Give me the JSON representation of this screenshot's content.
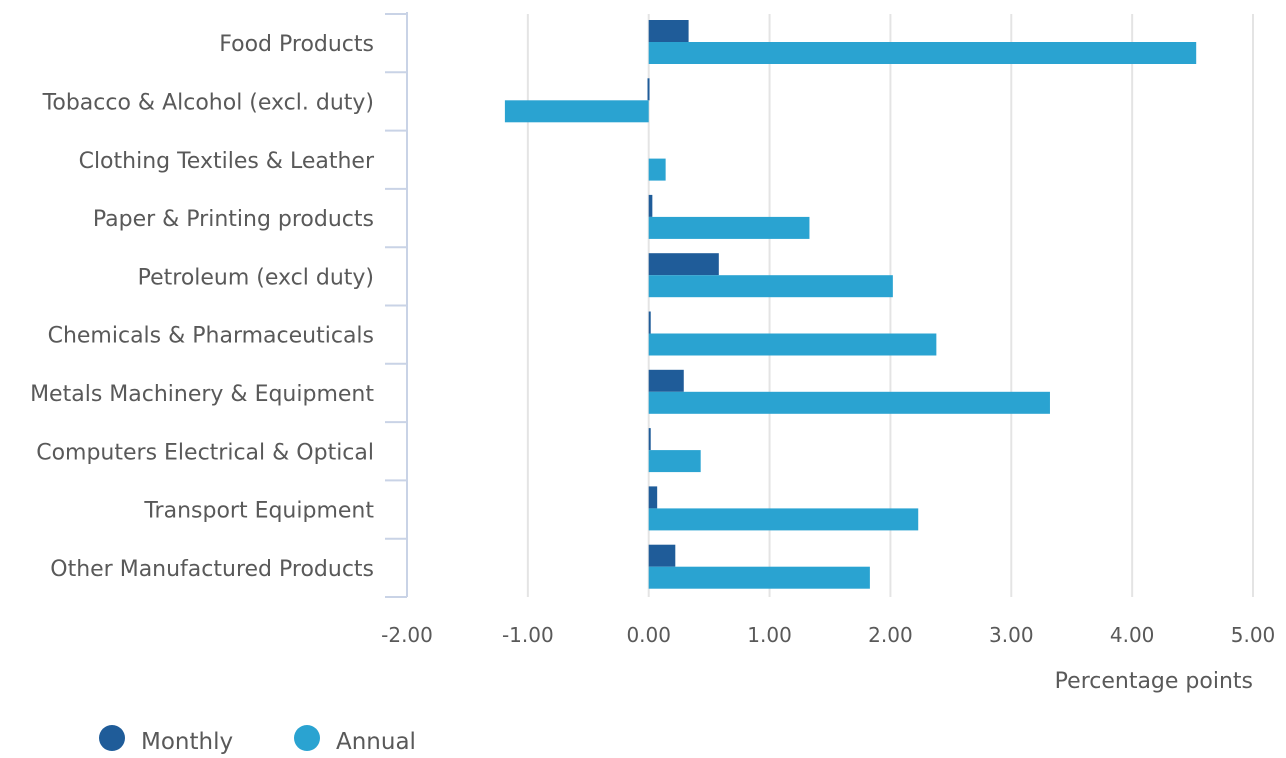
{
  "chart_data": {
    "type": "bar",
    "orientation": "horizontal",
    "categories": [
      "Food Products",
      "Tobacco & Alcohol (excl. duty)",
      "Clothing Textiles & Leather",
      "Paper & Printing products",
      "Petroleum (excl duty)",
      "Chemicals & Pharmaceuticals",
      "Metals Machinery & Equipment",
      "Computers Electrical & Optical",
      "Transport Equipment",
      "Other Manufactured Products"
    ],
    "series": [
      {
        "name": "Monthly",
        "color": "#1f5c99",
        "values": [
          0.33,
          -0.01,
          0.0,
          0.03,
          0.58,
          0.01,
          0.29,
          0.01,
          0.07,
          0.22
        ]
      },
      {
        "name": "Annual",
        "color": "#2aa3d1",
        "values": [
          4.53,
          -1.19,
          0.14,
          1.33,
          2.02,
          2.38,
          3.32,
          0.43,
          2.23,
          1.83
        ]
      }
    ],
    "xlim": [
      -2.0,
      5.0
    ],
    "xticks": [
      "-2.00",
      "-1.00",
      "0.00",
      "1.00",
      "2.00",
      "3.00",
      "4.00",
      "5.00"
    ],
    "xlabel": "Percentage points",
    "grid": true,
    "legend_position": "bottom-left"
  }
}
